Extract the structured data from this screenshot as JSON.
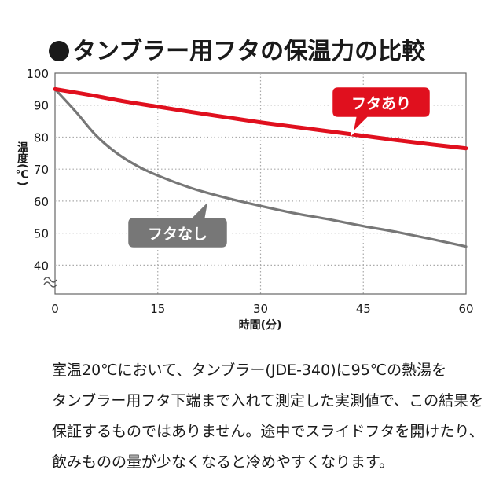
{
  "title": "タンブラー用フタの保温力の比較",
  "chart_data": {
    "type": "line",
    "title": "タンブラー用フタの保温力の比較",
    "xlabel": "時間(分)",
    "ylabel": "温度(℃)",
    "xlim": [
      0,
      60
    ],
    "ylim": [
      31,
      100
    ],
    "x_ticks": [
      0,
      15,
      30,
      45,
      60
    ],
    "y_ticks": [
      40,
      50,
      60,
      70,
      80,
      90,
      100
    ],
    "axis_break": "y",
    "grid": true,
    "series": [
      {
        "name": "フタあり",
        "color": "#e0101e",
        "x": [
          0,
          5,
          10,
          15,
          20,
          25,
          30,
          35,
          40,
          45,
          50,
          55,
          60
        ],
        "y": [
          95,
          93.2,
          91.2,
          89.5,
          87.8,
          86.2,
          84.6,
          83.2,
          81.8,
          80.4,
          79.0,
          77.7,
          76.5
        ]
      },
      {
        "name": "フタなし",
        "color": "#777777",
        "x": [
          0,
          3,
          6,
          9,
          12,
          15,
          20,
          25,
          30,
          35,
          40,
          45,
          50,
          55,
          60
        ],
        "y": [
          95,
          88,
          80.5,
          75,
          71,
          68,
          64,
          61,
          58.5,
          56.2,
          54.3,
          52.2,
          50.3,
          48.1,
          45.8
        ]
      }
    ]
  },
  "note_lines": [
    "室温20℃において、タンブラー(JDE-340)に95℃の熱湯を",
    "タンブラー用フタ下端まで入れて測定した実測値で、この結果を",
    "保証するものではありません。途中でスライドフタを開けたり、",
    "飲みものの量が少なくなると冷めやすくなります。"
  ]
}
